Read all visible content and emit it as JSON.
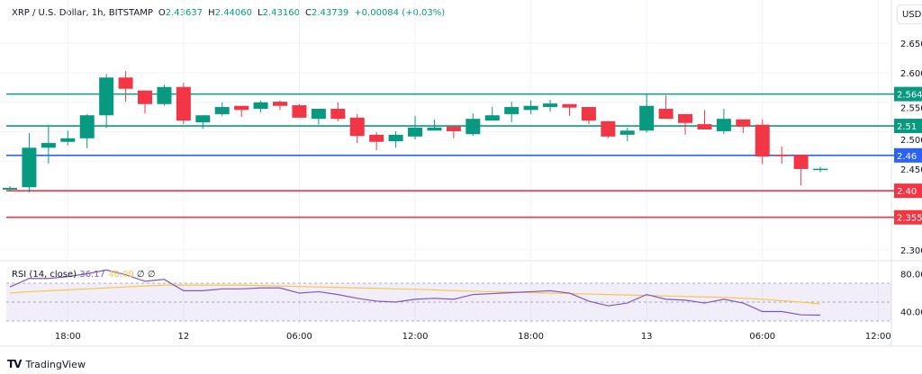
{
  "header": {
    "symbol": "XRP / U.S. Dollar, 1h, BITSTAMP",
    "open_label": "O",
    "open": "2.43637",
    "high_label": "H",
    "high": "2.44060",
    "low_label": "L",
    "low": "2.43160",
    "close_label": "C",
    "close": "2.43739",
    "change": "+0.00084 (+0.03%)"
  },
  "currency_button": "USD",
  "price_axis": {
    "ticks": [
      "2.650",
      "2.600",
      "2.550",
      "2.500",
      "2.450",
      "2.300"
    ],
    "tick_values": [
      2.65,
      2.6,
      2.55,
      2.5,
      2.45,
      2.3
    ]
  },
  "levels": [
    {
      "label": "2.564",
      "value": 2.564,
      "color": "#089981"
    },
    {
      "label": "2.51",
      "value": 2.51,
      "color": "#089981"
    },
    {
      "label": "2.46",
      "value": 2.46,
      "color": "#2962ff"
    },
    {
      "label": "2.40",
      "value": 2.4,
      "color": "#f23645"
    },
    {
      "label": "2.355",
      "value": 2.355,
      "color": "#f23645"
    }
  ],
  "colors": {
    "up": "#089981",
    "down": "#f23645",
    "rsi": "#7e57c2",
    "rsi_ma": "#f5c84c",
    "grid": "#f0f3fa"
  },
  "chart_data": {
    "type": "candlestick",
    "interval": "1h",
    "candles": [
      [
        2.402,
        2.408,
        2.399,
        2.405
      ],
      [
        2.406,
        2.498,
        2.397,
        2.473
      ],
      [
        2.473,
        2.512,
        2.446,
        2.481
      ],
      [
        2.483,
        2.502,
        2.477,
        2.489
      ],
      [
        2.489,
        2.53,
        2.472,
        2.528
      ],
      [
        2.528,
        2.598,
        2.507,
        2.592
      ],
      [
        2.592,
        2.603,
        2.551,
        2.573
      ],
      [
        2.57,
        2.57,
        2.531,
        2.547
      ],
      [
        2.547,
        2.58,
        2.544,
        2.576
      ],
      [
        2.576,
        2.583,
        2.513,
        2.519
      ],
      [
        2.516,
        2.528,
        2.505,
        2.528
      ],
      [
        2.53,
        2.55,
        2.527,
        2.542
      ],
      [
        2.544,
        2.544,
        2.525,
        2.537
      ],
      [
        2.539,
        2.553,
        2.533,
        2.55
      ],
      [
        2.551,
        2.553,
        2.537,
        2.544
      ],
      [
        2.545,
        2.547,
        2.524,
        2.524
      ],
      [
        2.522,
        2.539,
        2.512,
        2.539
      ],
      [
        2.539,
        2.55,
        2.518,
        2.522
      ],
      [
        2.524,
        2.53,
        2.481,
        2.493
      ],
      [
        2.495,
        2.499,
        2.469,
        2.483
      ],
      [
        2.484,
        2.501,
        2.473,
        2.495
      ],
      [
        2.492,
        2.527,
        2.487,
        2.507
      ],
      [
        2.502,
        2.521,
        2.502,
        2.507
      ],
      [
        2.509,
        2.509,
        2.489,
        2.501
      ],
      [
        2.496,
        2.531,
        2.493,
        2.522
      ],
      [
        2.519,
        2.542,
        2.519,
        2.528
      ],
      [
        2.53,
        2.551,
        2.516,
        2.542
      ],
      [
        2.537,
        2.553,
        2.53,
        2.544
      ],
      [
        2.542,
        2.554,
        2.534,
        2.548
      ],
      [
        2.547,
        2.547,
        2.527,
        2.541
      ],
      [
        2.542,
        2.542,
        2.513,
        2.519
      ],
      [
        2.518,
        2.518,
        2.489,
        2.492
      ],
      [
        2.495,
        2.507,
        2.484,
        2.502
      ],
      [
        2.502,
        2.565,
        2.499,
        2.544
      ],
      [
        2.539,
        2.562,
        2.522,
        2.522
      ],
      [
        2.53,
        2.53,
        2.495,
        2.515
      ],
      [
        2.513,
        2.537,
        2.504,
        2.504
      ],
      [
        2.501,
        2.539,
        2.496,
        2.522
      ],
      [
        2.521,
        2.521,
        2.498,
        2.509
      ],
      [
        2.512,
        2.521,
        2.445,
        2.458
      ],
      [
        2.461,
        2.475,
        2.446,
        2.46
      ],
      [
        2.461,
        2.461,
        2.409,
        2.437
      ],
      [
        2.43637,
        2.4406,
        2.4316,
        2.43739
      ]
    ],
    "time_labels": [
      {
        "label": "18:00",
        "index": 3
      },
      {
        "label": "12",
        "index": 9
      },
      {
        "label": "06:00",
        "index": 15
      },
      {
        "label": "12:00",
        "index": 21
      },
      {
        "label": "18:00",
        "index": 27
      },
      {
        "label": "13",
        "index": 33
      },
      {
        "label": "06:00",
        "index": 39
      },
      {
        "label": "12:00",
        "index": 45
      }
    ],
    "ylim": [
      2.27,
      2.67
    ]
  },
  "rsi": {
    "label": "RSI (14, close)",
    "value": "36.17",
    "ma_value": "48.09",
    "extra1": "∅",
    "extra2": "∅",
    "ticks": [
      "80.00",
      "40.00"
    ],
    "tick_values": [
      80,
      40
    ],
    "bands": [
      70,
      50,
      30
    ],
    "values": [
      66,
      75,
      75,
      77,
      80,
      84,
      79,
      72,
      74,
      62,
      62,
      64,
      64,
      65,
      65,
      59.5,
      61,
      58,
      54,
      51,
      50,
      53,
      54,
      53,
      58,
      59,
      60,
      61,
      62,
      59.5,
      51,
      46,
      49,
      58,
      53,
      52,
      49,
      53,
      49,
      40,
      40,
      36.5,
      36.17
    ],
    "ma": [
      59.5,
      61,
      62,
      63,
      64,
      65,
      66,
      67,
      68,
      68,
      68,
      68,
      68,
      67.5,
      67,
      66.5,
      66,
      65.5,
      65,
      64.5,
      64,
      63.5,
      63,
      62,
      61.5,
      61,
      60.5,
      60,
      59.5,
      59,
      58.5,
      58,
      57.5,
      57,
      56.5,
      56,
      55.5,
      55,
      54,
      53,
      51.5,
      50,
      48.09
    ]
  },
  "branding": {
    "logo_text": "TV",
    "name": "TradingView"
  }
}
